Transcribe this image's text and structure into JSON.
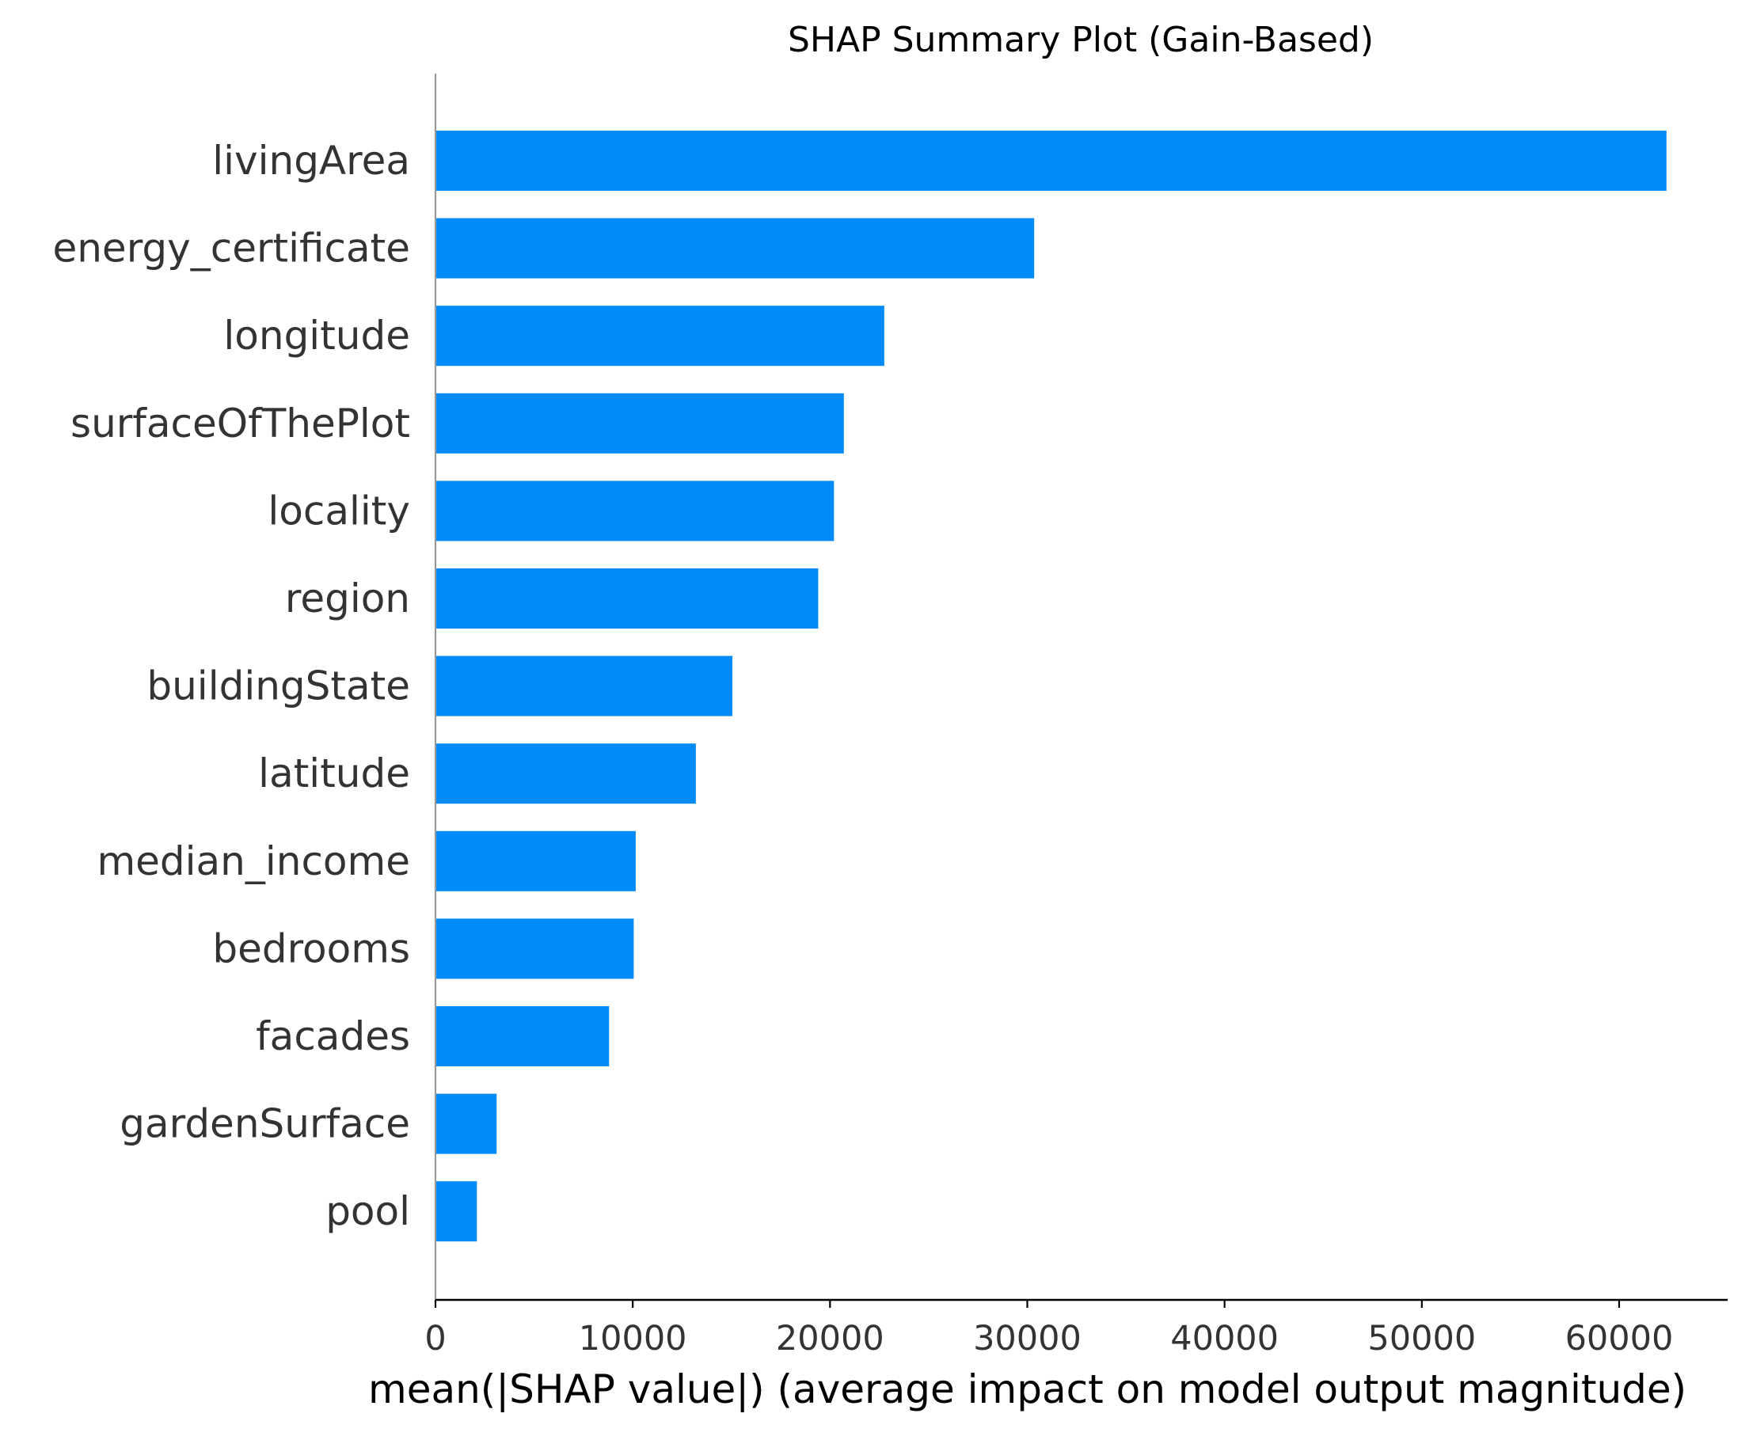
{
  "chart_data": {
    "type": "bar",
    "orientation": "horizontal",
    "title": "SHAP Summary Plot (Gain-Based)",
    "xlabel": "mean(|SHAP value|) (average impact on model output magnitude)",
    "ylabel": "",
    "xlim": [
      0,
      65500
    ],
    "xticks": [
      0,
      10000,
      20000,
      30000,
      40000,
      50000,
      60000
    ],
    "xtick_labels": [
      "0",
      "10000",
      "20000",
      "30000",
      "40000",
      "50000",
      "60000"
    ],
    "categories": [
      "livingArea",
      "energy_certificate",
      "longitude",
      "surfaceOfThePlot",
      "locality",
      "region",
      "buildingState",
      "latitude",
      "median_income",
      "bedrooms",
      "facades",
      "gardenSurface",
      "pool"
    ],
    "values": [
      62400,
      30350,
      22750,
      20700,
      20200,
      19400,
      15050,
      13200,
      10150,
      10050,
      8800,
      3100,
      2100
    ],
    "bar_color": "#008bfb",
    "grid": false,
    "legend": "none"
  }
}
